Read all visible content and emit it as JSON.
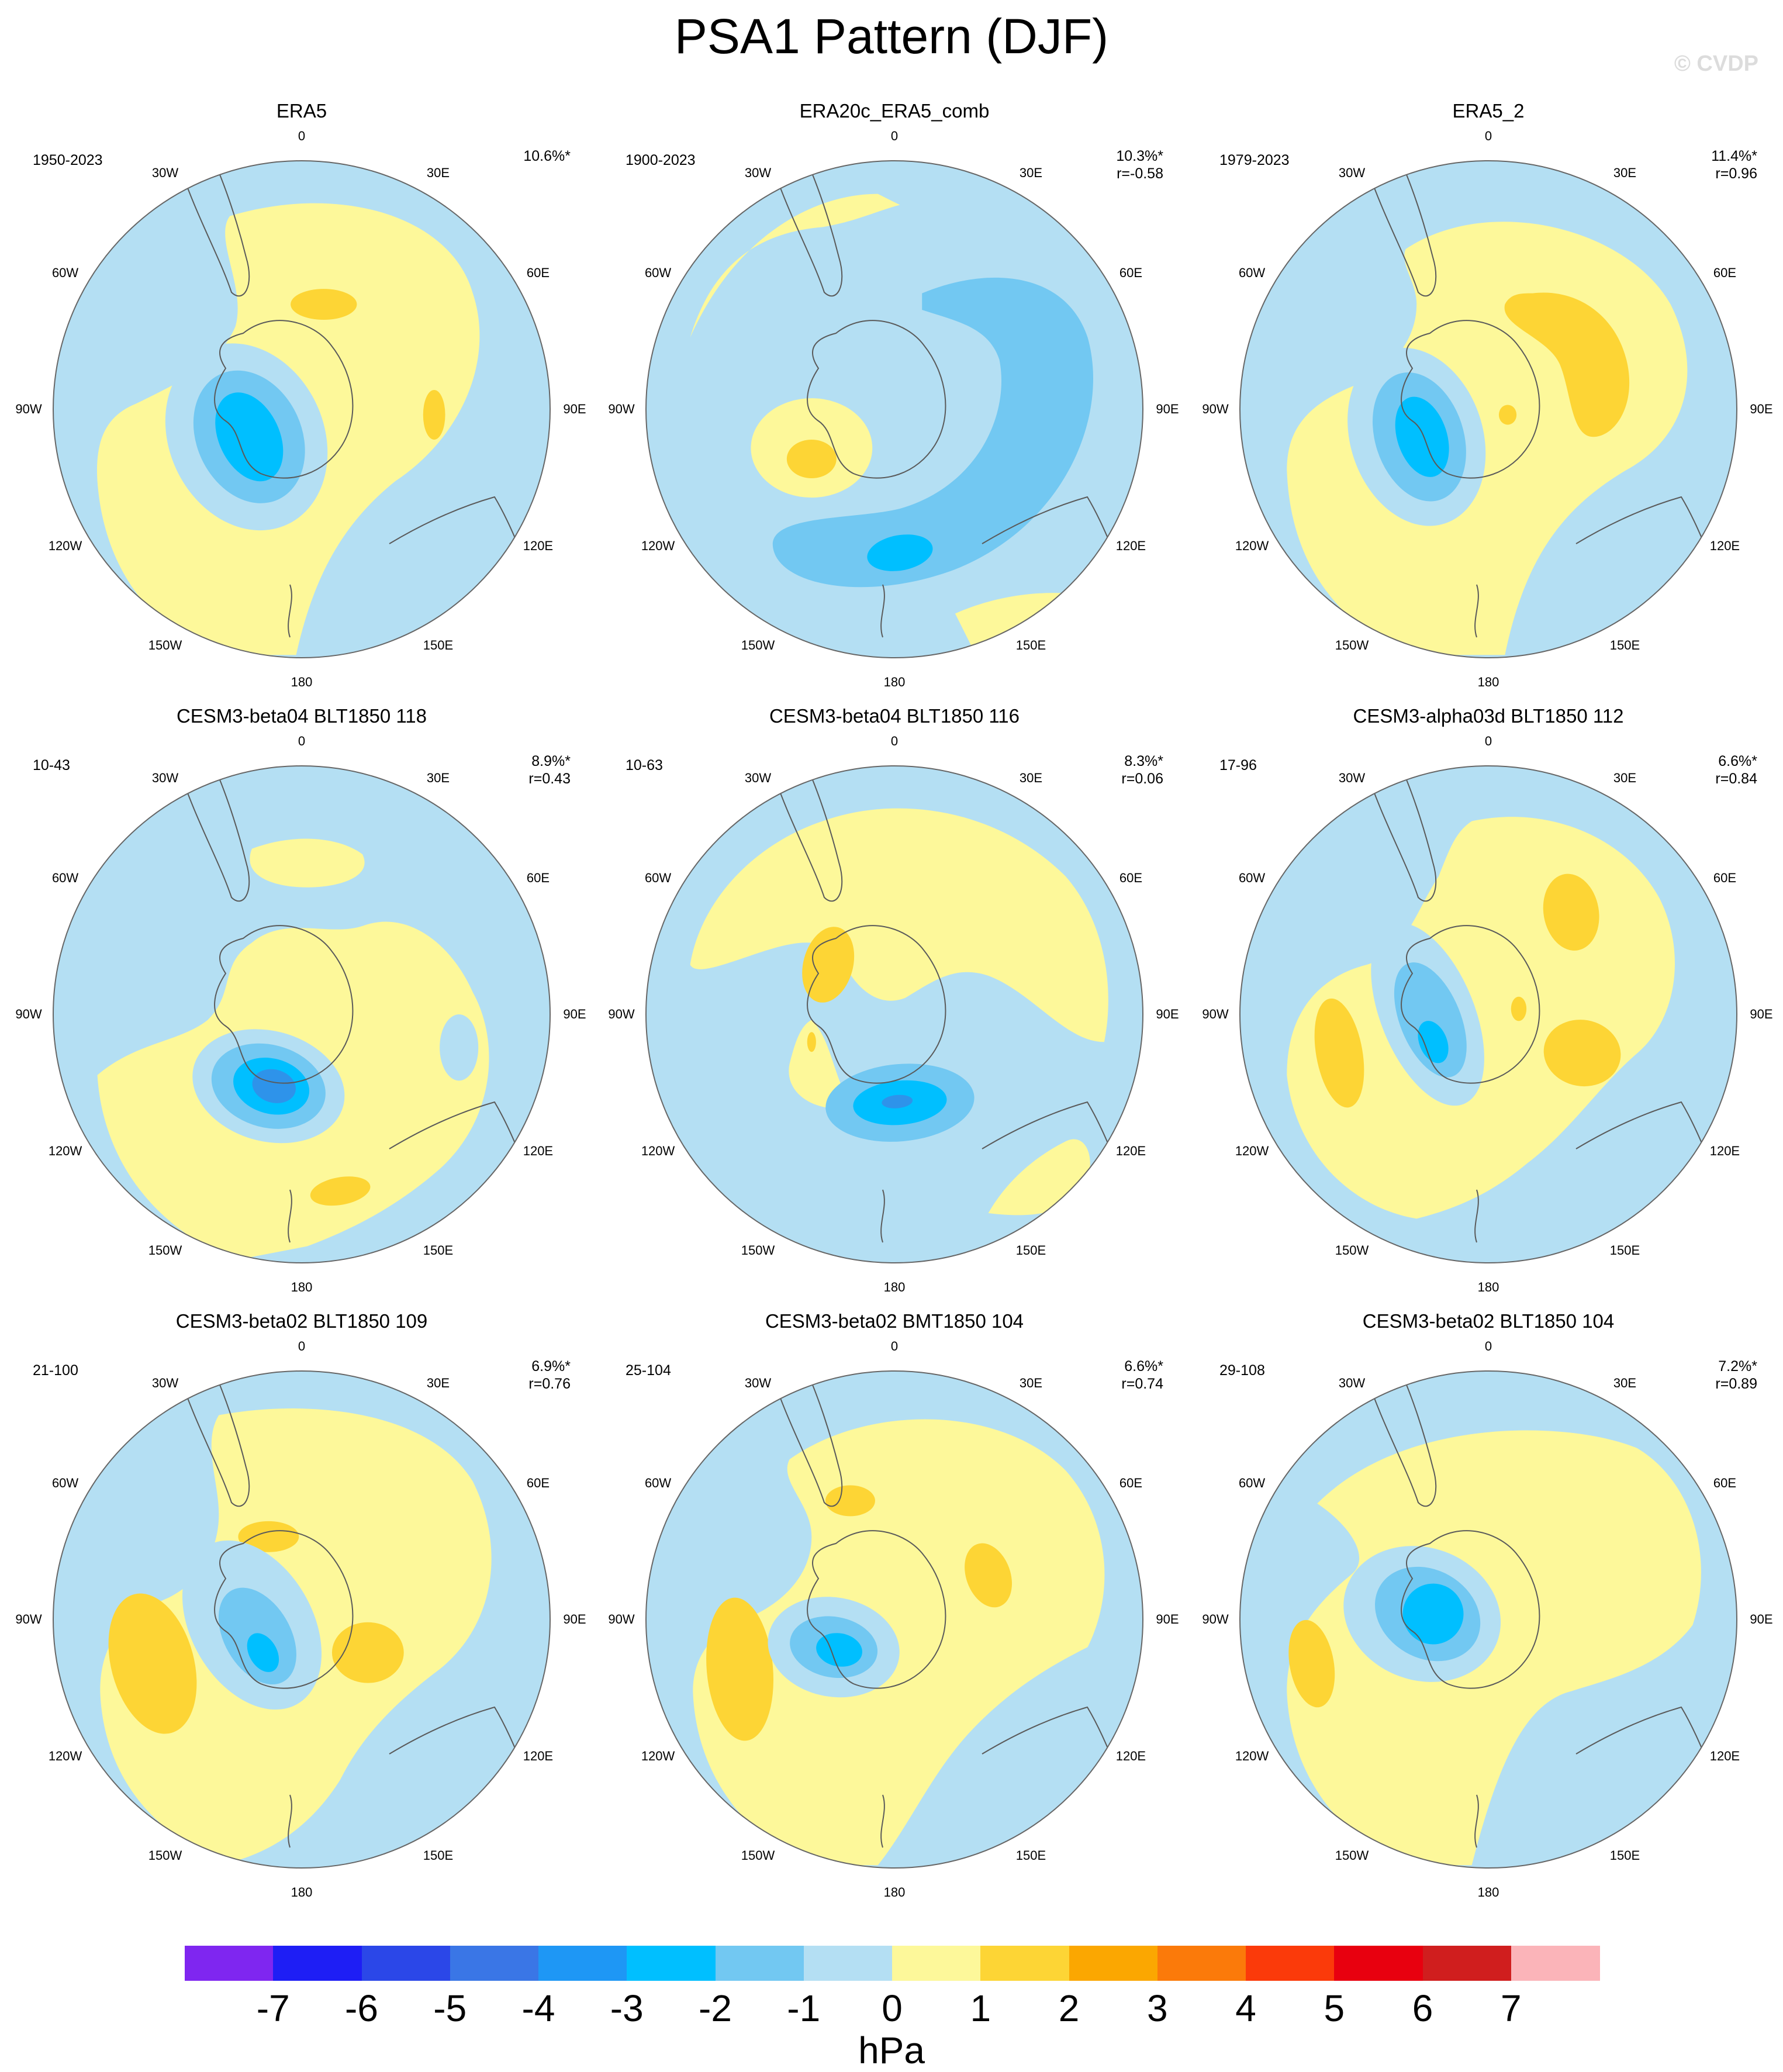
{
  "title": "PSA1 Pattern (DJF)",
  "watermark": "© CVDP",
  "colors": {
    "neg3": "#00bfff",
    "neg2": "#72c8f2",
    "neg1": "#b4dff3",
    "pos1": "#fdf89a",
    "pos2": "#fdd535",
    "pos3": "#fba701",
    "neg4": "#2e93ea"
  },
  "lon_labels": [
    "0",
    "30E",
    "60E",
    "90E",
    "120E",
    "150E",
    "180",
    "150W",
    "120W",
    "90W",
    "60W",
    "30W"
  ],
  "panels": [
    {
      "title": "ERA5",
      "period": "1950-2023",
      "pct": "10.6%*",
      "r": ""
    },
    {
      "title": "ERA20c_ERA5_comb",
      "period": "1900-2023",
      "pct": "10.3%*",
      "r": "r=-0.58"
    },
    {
      "title": "ERA5_2",
      "period": "1979-2023",
      "pct": "11.4%*",
      "r": "r=0.96"
    },
    {
      "title": "CESM3-beta04 BLT1850 118",
      "period": "10-43",
      "pct": "8.9%*",
      "r": "r=0.43"
    },
    {
      "title": "CESM3-beta04 BLT1850 116",
      "period": "10-63",
      "pct": "8.3%*",
      "r": "r=0.06"
    },
    {
      "title": "CESM3-alpha03d BLT1850 112",
      "period": "17-96",
      "pct": "6.6%*",
      "r": "r=0.84"
    },
    {
      "title": "CESM3-beta02 BLT1850 109",
      "period": "21-100",
      "pct": "6.9%*",
      "r": "r=0.76"
    },
    {
      "title": "CESM3-beta02 BMT1850 104",
      "period": "25-104",
      "pct": "6.6%*",
      "r": "r=0.74"
    },
    {
      "title": "CESM3-beta02 BLT1850 104",
      "period": "29-108",
      "pct": "7.2%*",
      "r": "r=0.89"
    }
  ],
  "colorbar": {
    "colors": [
      "#7f26f0",
      "#1e1ef5",
      "#2b47e8",
      "#3a76e6",
      "#1e97f5",
      "#00bfff",
      "#72c8f2",
      "#b4dff3",
      "#fdf89a",
      "#fdd535",
      "#fba701",
      "#fb7a0a",
      "#fb3a0a",
      "#e8000f",
      "#d01e1e",
      "#fbb4b9"
    ],
    "ticks": [
      "-7",
      "-6",
      "-5",
      "-4",
      "-3",
      "-2",
      "-1",
      "0",
      "1",
      "2",
      "3",
      "4",
      "5",
      "6",
      "7"
    ],
    "units": "hPa"
  }
}
